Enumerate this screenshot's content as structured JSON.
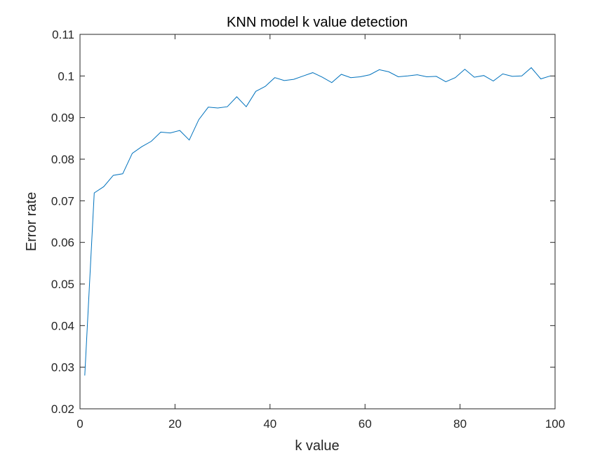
{
  "chart_data": {
    "type": "line",
    "title": "KNN model k value detection",
    "xlabel": "k value",
    "ylabel": "Error rate",
    "xlim": [
      0,
      100
    ],
    "ylim": [
      0.02,
      0.11
    ],
    "xticks": [
      0,
      20,
      40,
      60,
      80,
      100
    ],
    "yticks": [
      0.02,
      0.03,
      0.04,
      0.05,
      0.06,
      0.07,
      0.08,
      0.09,
      0.1,
      0.11
    ],
    "xtick_labels": [
      "0",
      "20",
      "40",
      "60",
      "80",
      "100"
    ],
    "ytick_labels": [
      "0.02",
      "0.03",
      "0.04",
      "0.05",
      "0.06",
      "0.07",
      "0.08",
      "0.09",
      "0.1",
      "0.11"
    ],
    "grid": false,
    "line_color": "#0072BD",
    "series": [
      {
        "x": [
          1,
          3,
          5,
          7,
          9,
          11,
          13,
          15,
          17,
          19,
          21,
          23,
          25,
          27,
          29,
          31,
          33,
          35,
          37,
          39,
          41,
          43,
          45,
          47,
          49,
          51,
          53,
          55,
          57,
          59,
          61,
          63,
          65,
          67,
          69,
          71,
          73,
          75,
          77,
          79,
          81,
          83,
          85,
          87,
          89,
          91,
          93,
          95,
          97,
          99
        ],
        "y": [
          0.028,
          0.0719,
          0.0734,
          0.0761,
          0.0765,
          0.0814,
          0.083,
          0.0843,
          0.0865,
          0.0863,
          0.0869,
          0.0846,
          0.0895,
          0.0925,
          0.0923,
          0.0926,
          0.095,
          0.0926,
          0.0963,
          0.0975,
          0.0996,
          0.0989,
          0.0992,
          0.1,
          0.1008,
          0.0997,
          0.0984,
          0.1004,
          0.0996,
          0.0998,
          0.1003,
          0.1015,
          0.101,
          0.0998,
          0.1,
          0.1003,
          0.0998,
          0.0999,
          0.0986,
          0.0996,
          0.1016,
          0.0997,
          0.1001,
          0.0988,
          0.1005,
          0.0999,
          0.1,
          0.102,
          0.0993,
          0.1
        ]
      }
    ]
  }
}
